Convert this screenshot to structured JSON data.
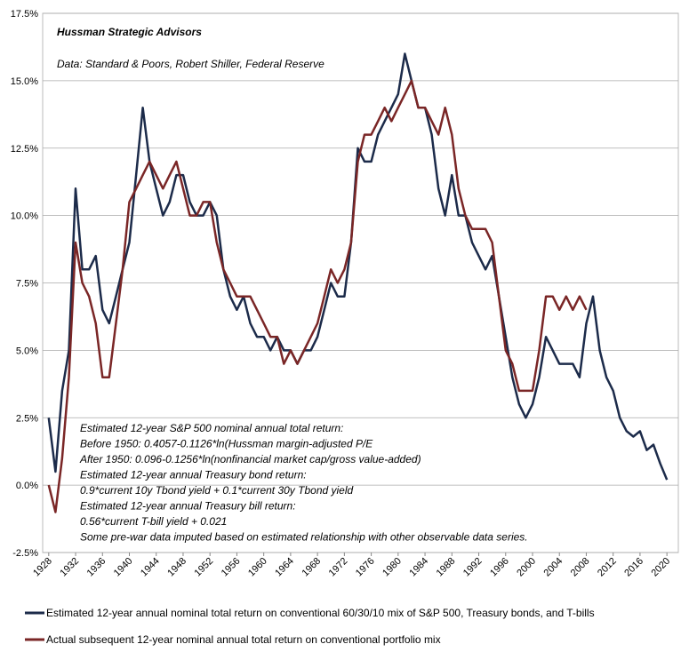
{
  "chart_data": {
    "type": "line",
    "annotations": [
      "Hussman Strategic Advisors",
      "Data: Standard & Poors, Robert Shiller, Federal Reserve"
    ],
    "notes": [
      "Estimated 12-year S&P 500 nominal annual total return:",
      "Before 1950: 0.4057-0.1126*ln(Hussman margin-adjusted P/E",
      "After 1950: 0.096-0.1256*ln(nonfinancial market cap/gross value-added)",
      "Estimated 12-year annual Treasury bond return:",
      "0.9*current 10y Tbond yield + 0.1*current 30y Tbond yield",
      "Estimated 12-year annual Treasury bill return:",
      "0.56*current T-bill yield + 0.021",
      "Some pre-war data imputed based on estimated relationship with other observable data series."
    ],
    "x": [
      1928,
      1929,
      1930,
      1931,
      1932,
      1933,
      1934,
      1935,
      1936,
      1937,
      1938,
      1939,
      1940,
      1941,
      1942,
      1943,
      1944,
      1945,
      1946,
      1947,
      1948,
      1949,
      1950,
      1951,
      1952,
      1953,
      1954,
      1955,
      1956,
      1957,
      1958,
      1959,
      1960,
      1961,
      1962,
      1963,
      1964,
      1965,
      1966,
      1967,
      1968,
      1969,
      1970,
      1971,
      1972,
      1973,
      1974,
      1975,
      1976,
      1977,
      1978,
      1979,
      1980,
      1981,
      1982,
      1983,
      1984,
      1985,
      1986,
      1987,
      1988,
      1989,
      1990,
      1991,
      1992,
      1993,
      1994,
      1995,
      1996,
      1997,
      1998,
      1999,
      2000,
      2001,
      2002,
      2003,
      2004,
      2005,
      2006,
      2007,
      2008,
      2009,
      2010,
      2011,
      2012,
      2013,
      2014,
      2015,
      2016,
      2017,
      2018,
      2019,
      2020
    ],
    "series": [
      {
        "name": "Estimated 12-year annual nominal total return on conventional 60/30/10 mix of S&P 500, Treasury bonds, and T-bills",
        "color": "#1c2b4a",
        "values": [
          2.5,
          0.5,
          3.5,
          5,
          11,
          8,
          8,
          8.5,
          6.5,
          6,
          7,
          8,
          9,
          11.5,
          14,
          12,
          11,
          10,
          10.5,
          11.5,
          11.5,
          10.5,
          10,
          10,
          10.5,
          10,
          8,
          7,
          6.5,
          7,
          6,
          5.5,
          5.5,
          5,
          5.5,
          5,
          5,
          4.5,
          5,
          5,
          5.5,
          6.5,
          7.5,
          7,
          7,
          9,
          12.5,
          12,
          12,
          13,
          13.5,
          14,
          14.5,
          16,
          15,
          14,
          14,
          13,
          11,
          10,
          11.5,
          10,
          10,
          9,
          8.5,
          8,
          8.5,
          7,
          5.5,
          4,
          3,
          2.5,
          3,
          4,
          5.5,
          5,
          4.5,
          4.5,
          4.5,
          4,
          6,
          7,
          5,
          4,
          3.5,
          2.5,
          2,
          1.8,
          2,
          1.3,
          1.5,
          0.8,
          0.2
        ]
      },
      {
        "name": "Actual subsequent 12-year nominal annual total return on conventional portfolio mix",
        "color": "#7a2626",
        "values": [
          0,
          -1,
          1,
          4,
          9,
          7.5,
          7,
          6,
          4,
          4,
          6,
          8,
          10.5,
          11,
          11.5,
          12,
          11.5,
          11,
          11.5,
          12,
          11,
          10,
          10,
          10.5,
          10.5,
          9,
          8,
          7.5,
          7,
          7,
          7,
          6.5,
          6,
          5.5,
          5.5,
          4.5,
          5,
          4.5,
          5,
          5.5,
          6,
          7,
          8,
          7.5,
          8,
          9,
          12,
          13,
          13,
          13.5,
          14,
          13.5,
          14,
          14.5,
          15,
          14,
          14,
          13.5,
          13,
          14,
          13,
          11,
          10,
          9.5,
          9.5,
          9.5,
          9,
          7,
          5,
          4.5,
          3.5,
          3.5,
          3.5,
          5,
          7,
          7,
          6.5,
          7,
          6.5,
          7,
          6.5,
          null,
          null,
          null,
          null,
          null,
          null,
          null,
          null,
          null,
          null,
          null,
          null
        ]
      }
    ],
    "xlim": [
      1927.1,
      2021.7
    ],
    "xticks": [
      1928,
      1932,
      1936,
      1940,
      1944,
      1948,
      1952,
      1956,
      1960,
      1964,
      1968,
      1972,
      1976,
      1980,
      1984,
      1988,
      1992,
      1996,
      2000,
      2004,
      2008,
      2012,
      2016,
      2020
    ],
    "ylim": [
      -2.5,
      17.5
    ],
    "yticks": [
      {
        "value": -2.5,
        "label": "-2.5%"
      },
      {
        "value": 0,
        "label": "0.0%"
      },
      {
        "value": 2.5,
        "label": "2.5%"
      },
      {
        "value": 5,
        "label": "5.0%"
      },
      {
        "value": 7.5,
        "label": "7.5%"
      },
      {
        "value": 10,
        "label": "10.0%"
      },
      {
        "value": 12.5,
        "label": "12.5%"
      },
      {
        "value": 15,
        "label": "15.0%"
      },
      {
        "value": 17.5,
        "label": "17.5%"
      }
    ],
    "grid": true
  }
}
